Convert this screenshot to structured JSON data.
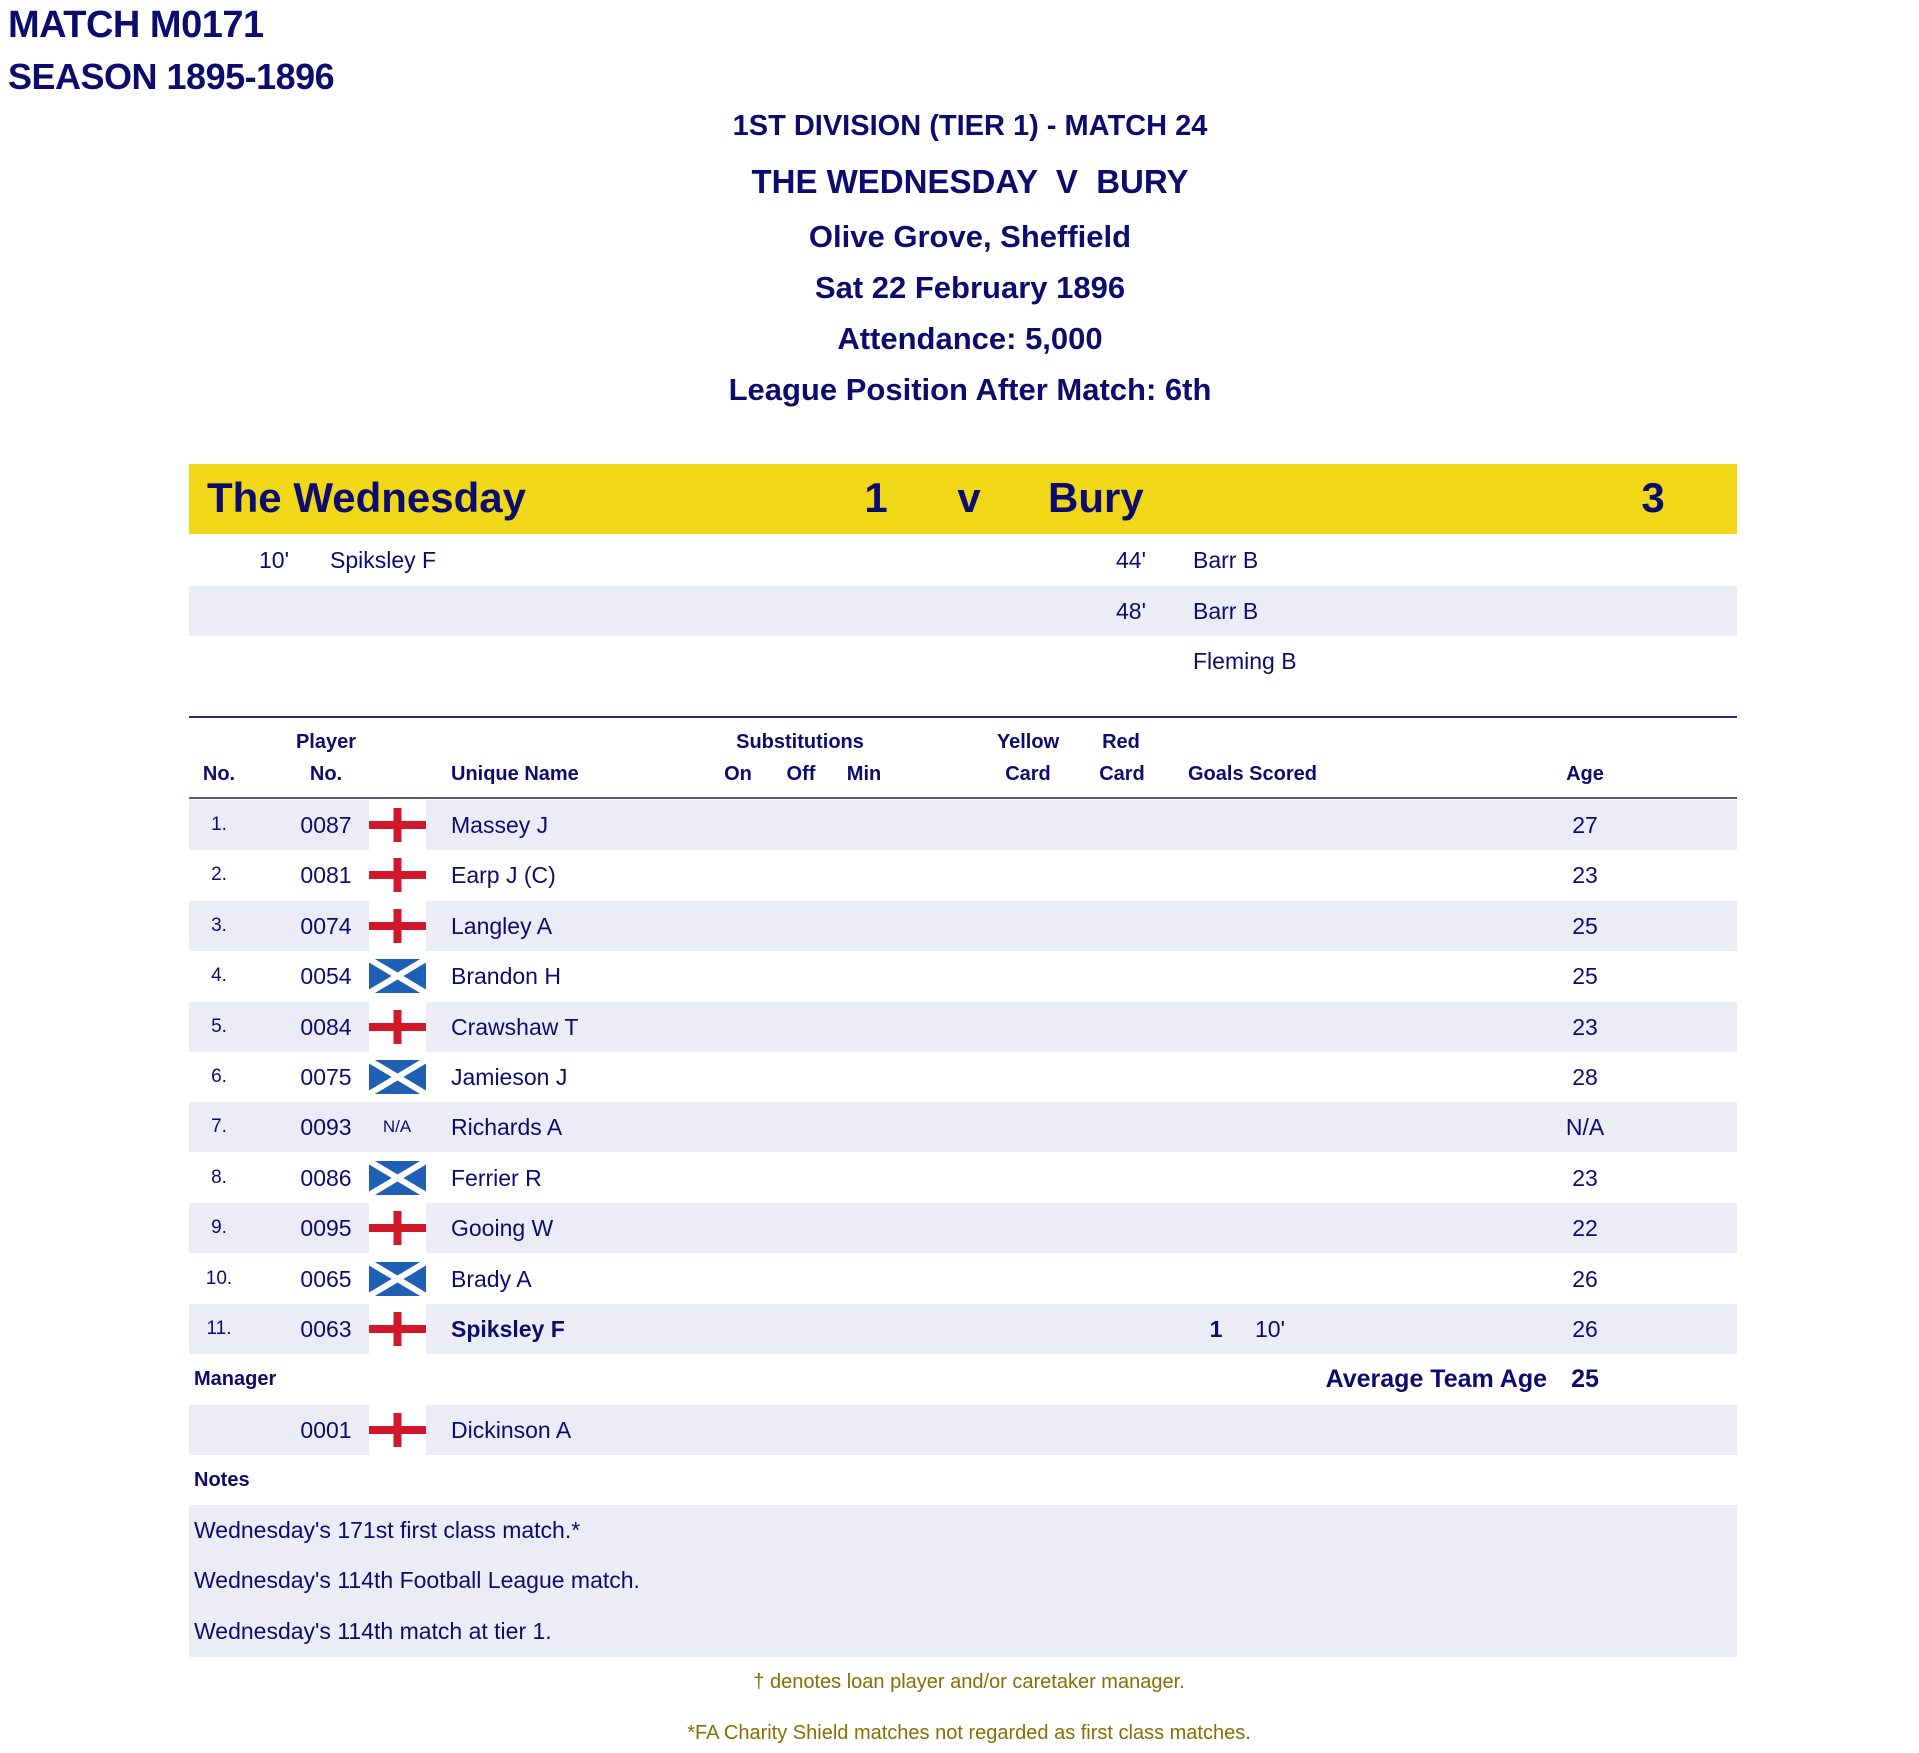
{
  "match_id": "MATCH M0171",
  "season": "SEASON 1895-1896",
  "header": {
    "competition": "1ST DIVISION (TIER 1) - MATCH 24",
    "fixture": "THE WEDNESDAY  V  BURY",
    "venue": "Olive Grove, Sheffield",
    "date": "Sat 22 February 1896",
    "attendance": "Attendance: 5,000",
    "league_position": "League Position After Match: 6th"
  },
  "scoreline": {
    "home_team": "The Wednesday",
    "home_score": "1",
    "versus": "v",
    "away_team": "Bury",
    "away_score": "3",
    "bar_color": "#f0d818"
  },
  "goals": [
    {
      "home_min": "10'",
      "home_scorer": "Spiksley F",
      "away_min": "44'",
      "away_scorer": "Barr B"
    },
    {
      "home_min": "",
      "home_scorer": "",
      "away_min": "48'",
      "away_scorer": "Barr B"
    },
    {
      "home_min": "",
      "home_scorer": "",
      "away_min": "",
      "away_scorer": "Fleming B"
    }
  ],
  "columns": {
    "no": "No.",
    "player_no_top": "Player",
    "player_no_bottom": "No.",
    "unique_name": "Unique Name",
    "substitutions": "Substitutions",
    "on": "On",
    "off": "Off",
    "min": "Min",
    "yellow_top": "Yellow",
    "yellow_bottom": "Card",
    "red_top": "Red",
    "red_bottom": "Card",
    "goals_scored": "Goals Scored",
    "age": "Age"
  },
  "players": [
    {
      "no": "1.",
      "player_no": "0087",
      "flag": "england-flag",
      "name": "Massey J",
      "goals": "",
      "goal_min": "",
      "age": "27"
    },
    {
      "no": "2.",
      "player_no": "0081",
      "flag": "england-flag",
      "name": "Earp J (C)",
      "goals": "",
      "goal_min": "",
      "age": "23"
    },
    {
      "no": "3.",
      "player_no": "0074",
      "flag": "england-flag",
      "name": "Langley A",
      "goals": "",
      "goal_min": "",
      "age": "25"
    },
    {
      "no": "4.",
      "player_no": "0054",
      "flag": "scotland-flag",
      "name": "Brandon H",
      "goals": "",
      "goal_min": "",
      "age": "25"
    },
    {
      "no": "5.",
      "player_no": "0084",
      "flag": "england-flag",
      "name": "Crawshaw T",
      "goals": "",
      "goal_min": "",
      "age": "23"
    },
    {
      "no": "6.",
      "player_no": "0075",
      "flag": "scotland-flag",
      "name": "Jamieson J",
      "goals": "",
      "goal_min": "",
      "age": "28"
    },
    {
      "no": "7.",
      "player_no": "0093",
      "flag": "N/A",
      "name": "Richards A",
      "goals": "",
      "goal_min": "",
      "age": "N/A"
    },
    {
      "no": "8.",
      "player_no": "0086",
      "flag": "scotland-flag",
      "name": "Ferrier R",
      "goals": "",
      "goal_min": "",
      "age": "23"
    },
    {
      "no": "9.",
      "player_no": "0095",
      "flag": "england-flag",
      "name": "Gooing W",
      "goals": "",
      "goal_min": "",
      "age": "22"
    },
    {
      "no": "10.",
      "player_no": "0065",
      "flag": "scotland-flag",
      "name": "Brady A",
      "goals": "",
      "goal_min": "",
      "age": "26"
    },
    {
      "no": "11.",
      "player_no": "0063",
      "flag": "england-flag",
      "name": "Spiksley F",
      "goals": "1",
      "goal_min": "10'",
      "age": "26",
      "scorer": true
    }
  ],
  "manager": {
    "label": "Manager",
    "avg_age_label": "Average Team Age",
    "avg_age": "25",
    "player_no": "0001",
    "flag": "england-flag",
    "name": "Dickinson A"
  },
  "notes": {
    "label": "Notes",
    "items": [
      "Wednesday's 171st first class match.*",
      "Wednesday's 114th Football League match.",
      "Wednesday's 114th match at tier 1."
    ]
  },
  "footnotes": [
    "† denotes loan player and/or caretaker manager.",
    "*FA Charity Shield matches not regarded as first class matches."
  ],
  "colors": {
    "text": "#0c0c6e",
    "row_shade": "#ececf6",
    "footnote": "#8a6d00",
    "england_red": "#d0182a",
    "scotland_blue": "#1f5fb4"
  }
}
